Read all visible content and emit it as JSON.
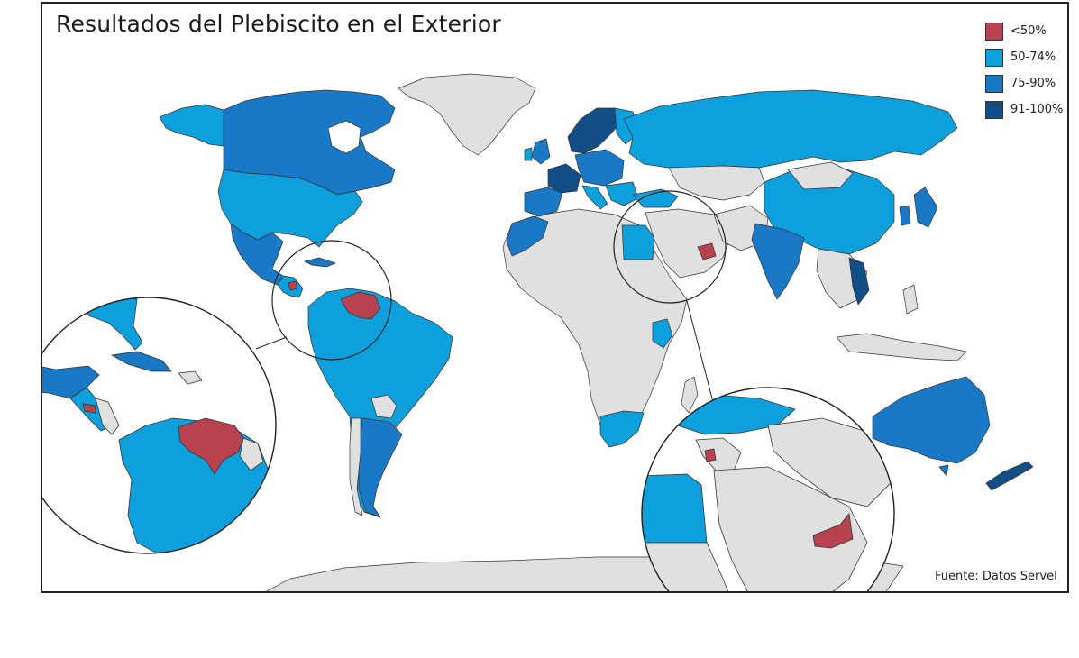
{
  "title": "Resultados del Plebiscito en el Exterior",
  "source": "Fuente: Datos Servel",
  "colors": {
    "lt50": "#b8434f",
    "c50_74": "#0ea0dc",
    "c75_90": "#1a79c6",
    "c91_100": "#134e86",
    "no_data": "#e0e0e0",
    "border": "#333333",
    "water": "#ffffff"
  },
  "legend": [
    {
      "label": "<50%",
      "color_key": "lt50"
    },
    {
      "label": "50-74%",
      "color_key": "c50_74"
    },
    {
      "label": "75-90%",
      "color_key": "c75_90"
    },
    {
      "label": "91-100%",
      "color_key": "c91_100"
    }
  ],
  "insets": [
    {
      "name": "caribbean-inset",
      "highlight": "Venezuela"
    },
    {
      "name": "middle-east-inset",
      "highlight": "Emiratos Árabes Unidos"
    }
  ]
}
